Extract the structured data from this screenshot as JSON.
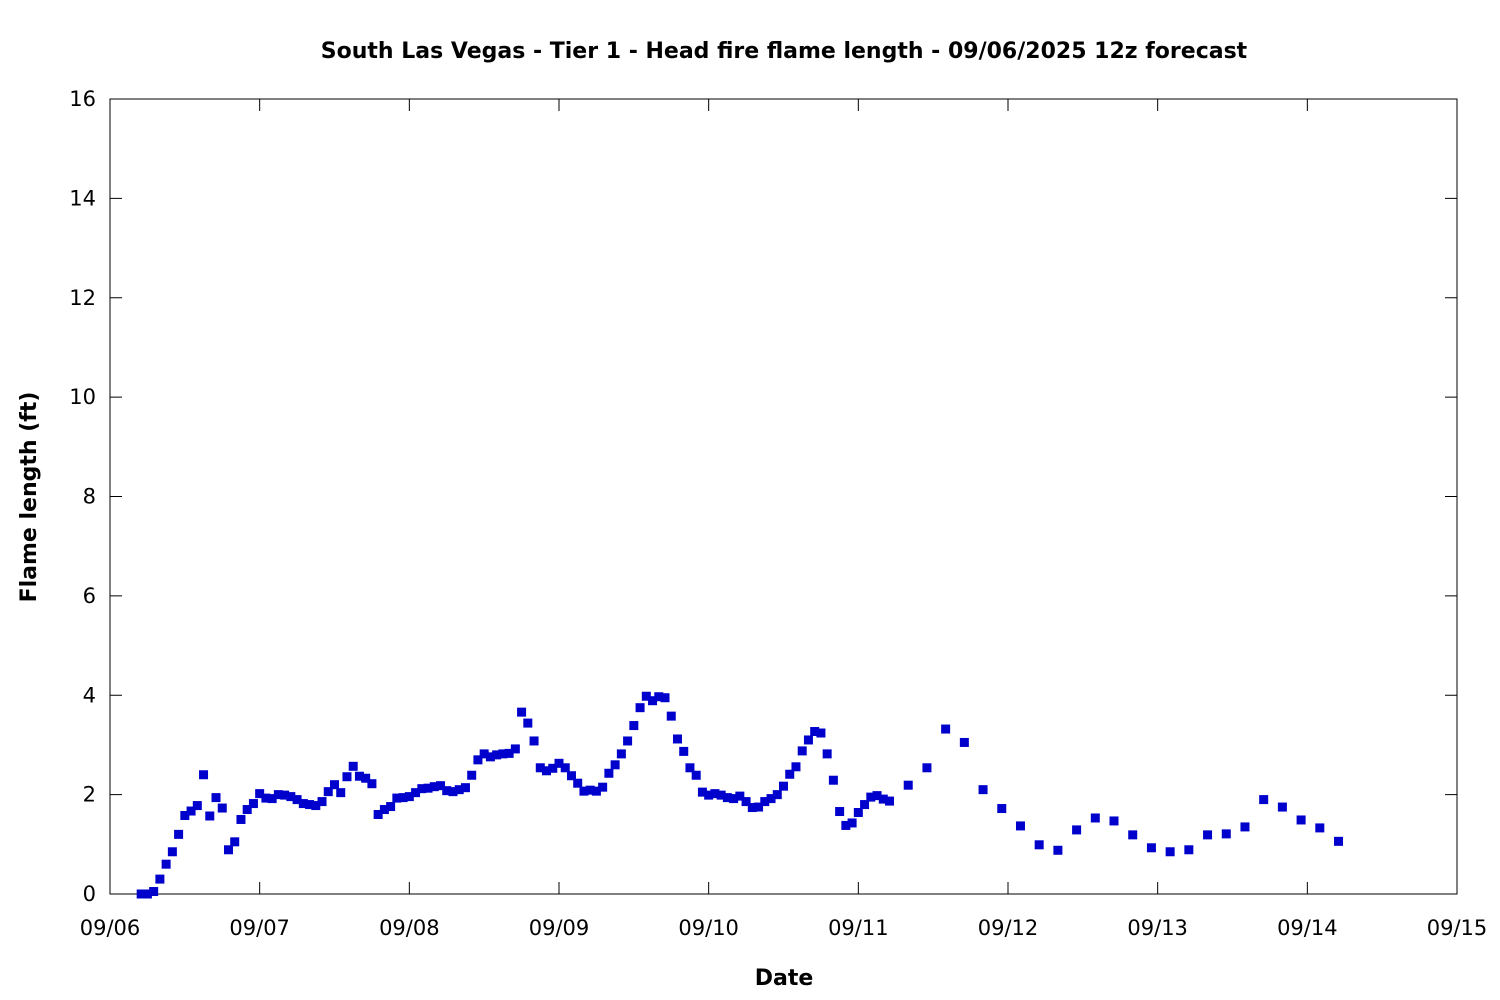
{
  "chart_data": {
    "type": "scatter",
    "title": "South Las Vegas - Tier 1 - Head fire flame length - 09/06/2025 12z forecast",
    "xlabel": "Date",
    "ylabel": "Flame length (ft)",
    "x_ticks": [
      "09/06",
      "09/07",
      "09/08",
      "09/09",
      "09/10",
      "09/11",
      "09/12",
      "09/13",
      "09/14",
      "09/15"
    ],
    "y_ticks": [
      "0",
      "2",
      "4",
      "6",
      "8",
      "10",
      "12",
      "14",
      "16"
    ],
    "xlim": [
      "2025-09-06 00:00",
      "2025-09-15 00:00"
    ],
    "ylim": [
      0,
      16
    ],
    "grid": false,
    "marker": "square",
    "marker_color": "#0000cc",
    "series": [
      {
        "x": [
          "2025-09-06 05:00",
          "2025-09-06 06:00",
          "2025-09-06 07:00",
          "2025-09-06 08:00",
          "2025-09-06 09:00",
          "2025-09-06 10:00",
          "2025-09-06 11:00",
          "2025-09-06 12:00",
          "2025-09-06 13:00",
          "2025-09-06 14:00",
          "2025-09-06 15:00",
          "2025-09-06 16:00",
          "2025-09-06 17:00",
          "2025-09-06 18:00",
          "2025-09-06 19:00",
          "2025-09-06 20:00",
          "2025-09-06 21:00",
          "2025-09-06 22:00",
          "2025-09-06 23:00",
          "2025-09-07 00:00",
          "2025-09-07 01:00",
          "2025-09-07 02:00",
          "2025-09-07 03:00",
          "2025-09-07 04:00",
          "2025-09-07 05:00",
          "2025-09-07 06:00",
          "2025-09-07 07:00",
          "2025-09-07 08:00",
          "2025-09-07 09:00",
          "2025-09-07 10:00",
          "2025-09-07 11:00",
          "2025-09-07 12:00",
          "2025-09-07 13:00",
          "2025-09-07 14:00",
          "2025-09-07 15:00",
          "2025-09-07 16:00",
          "2025-09-07 17:00",
          "2025-09-07 18:00",
          "2025-09-07 19:00",
          "2025-09-07 20:00",
          "2025-09-07 21:00",
          "2025-09-07 22:00",
          "2025-09-07 23:00",
          "2025-09-08 00:00",
          "2025-09-08 01:00",
          "2025-09-08 02:00",
          "2025-09-08 03:00",
          "2025-09-08 04:00",
          "2025-09-08 05:00",
          "2025-09-08 06:00",
          "2025-09-08 07:00",
          "2025-09-08 08:00",
          "2025-09-08 09:00",
          "2025-09-08 10:00",
          "2025-09-08 11:00",
          "2025-09-08 12:00",
          "2025-09-08 13:00",
          "2025-09-08 14:00",
          "2025-09-08 15:00",
          "2025-09-08 16:00",
          "2025-09-08 17:00",
          "2025-09-08 18:00",
          "2025-09-08 19:00",
          "2025-09-08 20:00",
          "2025-09-08 21:00",
          "2025-09-08 22:00",
          "2025-09-08 23:00",
          "2025-09-09 00:00",
          "2025-09-09 01:00",
          "2025-09-09 02:00",
          "2025-09-09 03:00",
          "2025-09-09 04:00",
          "2025-09-09 05:00",
          "2025-09-09 06:00",
          "2025-09-09 07:00",
          "2025-09-09 08:00",
          "2025-09-09 09:00",
          "2025-09-09 10:00",
          "2025-09-09 11:00",
          "2025-09-09 12:00",
          "2025-09-09 13:00",
          "2025-09-09 14:00",
          "2025-09-09 15:00",
          "2025-09-09 16:00",
          "2025-09-09 17:00",
          "2025-09-09 18:00",
          "2025-09-09 19:00",
          "2025-09-09 20:00",
          "2025-09-09 21:00",
          "2025-09-09 22:00",
          "2025-09-09 23:00",
          "2025-09-10 00:00",
          "2025-09-10 01:00",
          "2025-09-10 02:00",
          "2025-09-10 03:00",
          "2025-09-10 04:00",
          "2025-09-10 05:00",
          "2025-09-10 06:00",
          "2025-09-10 07:00",
          "2025-09-10 08:00",
          "2025-09-10 09:00",
          "2025-09-10 10:00",
          "2025-09-10 11:00",
          "2025-09-10 12:00",
          "2025-09-10 13:00",
          "2025-09-10 14:00",
          "2025-09-10 15:00",
          "2025-09-10 16:00",
          "2025-09-10 17:00",
          "2025-09-10 18:00",
          "2025-09-10 19:00",
          "2025-09-10 20:00",
          "2025-09-10 21:00",
          "2025-09-10 22:00",
          "2025-09-10 23:00",
          "2025-09-11 00:00",
          "2025-09-11 01:00",
          "2025-09-11 02:00",
          "2025-09-11 03:00",
          "2025-09-11 04:00",
          "2025-09-11 05:00",
          "2025-09-11 08:00",
          "2025-09-11 11:00",
          "2025-09-11 14:00",
          "2025-09-11 17:00",
          "2025-09-11 20:00",
          "2025-09-11 23:00",
          "2025-09-12 02:00",
          "2025-09-12 05:00",
          "2025-09-12 08:00",
          "2025-09-12 11:00",
          "2025-09-12 14:00",
          "2025-09-12 17:00",
          "2025-09-12 20:00",
          "2025-09-12 23:00",
          "2025-09-13 02:00",
          "2025-09-13 05:00",
          "2025-09-13 08:00",
          "2025-09-13 11:00",
          "2025-09-13 14:00",
          "2025-09-13 17:00",
          "2025-09-13 20:00",
          "2025-09-13 23:00",
          "2025-09-14 02:00",
          "2025-09-14 05:00"
        ],
        "y": [
          0.0,
          0.0,
          0.05,
          0.3,
          0.6,
          0.85,
          1.2,
          1.58,
          1.67,
          1.78,
          2.4,
          1.57,
          1.94,
          1.73,
          0.89,
          1.05,
          1.5,
          1.7,
          1.82,
          2.02,
          1.93,
          1.92,
          2.0,
          1.99,
          1.96,
          1.9,
          1.82,
          1.8,
          1.78,
          1.86,
          2.06,
          2.2,
          2.04,
          2.36,
          2.57,
          2.37,
          2.33,
          2.22,
          1.6,
          1.7,
          1.76,
          1.93,
          1.94,
          1.96,
          2.04,
          2.12,
          2.13,
          2.16,
          2.18,
          2.08,
          2.06,
          2.1,
          2.14,
          2.39,
          2.7,
          2.82,
          2.76,
          2.8,
          2.82,
          2.83,
          2.92,
          3.66,
          3.44,
          3.08,
          2.54,
          2.48,
          2.53,
          2.63,
          2.54,
          2.38,
          2.23,
          2.07,
          2.09,
          2.07,
          2.15,
          2.43,
          2.6,
          2.82,
          3.08,
          3.39,
          3.75,
          3.98,
          3.89,
          3.97,
          3.95,
          3.58,
          3.12,
          2.87,
          2.54,
          2.39,
          2.05,
          1.99,
          2.02,
          1.99,
          1.94,
          1.92,
          1.97,
          1.86,
          1.74,
          1.75,
          1.86,
          1.92,
          2.0,
          2.17,
          2.41,
          2.56,
          2.88,
          3.1,
          3.27,
          3.24,
          2.82,
          2.29,
          1.66,
          1.38,
          1.43,
          1.64,
          1.8,
          1.95,
          1.98,
          1.91,
          1.87,
          2.19,
          2.54,
          3.32,
          3.05,
          2.1,
          1.72,
          1.37,
          0.99,
          0.88,
          1.29,
          1.53,
          1.47,
          1.19,
          0.93,
          0.85,
          0.89,
          1.19,
          1.21,
          1.35,
          1.9,
          1.75,
          1.49,
          1.33,
          1.06
        ]
      }
    ]
  }
}
